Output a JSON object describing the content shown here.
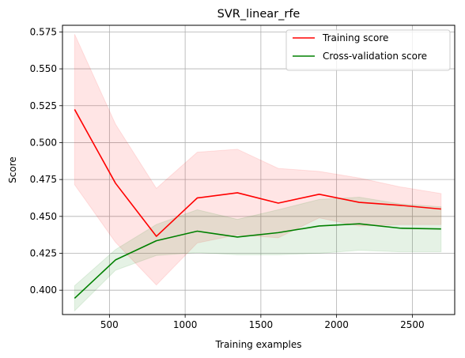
{
  "chart_data": {
    "type": "line",
    "title": "SVR_linear_rfe",
    "xlabel": "Training examples",
    "ylabel": "Score",
    "xlim": [
      190,
      2780
    ],
    "ylim": [
      0.3835,
      0.5795
    ],
    "xticks": [
      500,
      1000,
      1500,
      2000,
      2500
    ],
    "yticks": [
      0.4,
      0.425,
      0.45,
      0.475,
      0.5,
      0.525,
      0.55,
      0.575
    ],
    "ytick_labels": [
      "0.400",
      "0.425",
      "0.450",
      "0.475",
      "0.500",
      "0.525",
      "0.550",
      "0.575"
    ],
    "grid": true,
    "legend_position": "top-right",
    "x": [
      270,
      540,
      810,
      1080,
      1345,
      1615,
      1885,
      2150,
      2420,
      2690
    ],
    "series": [
      {
        "name": "Training score",
        "color": "#ff0000",
        "band_color": "#ff0000",
        "values": [
          0.5225,
          0.4725,
          0.4365,
          0.4625,
          0.466,
          0.459,
          0.465,
          0.4595,
          0.4575,
          0.455
        ],
        "upper": [
          0.5735,
          0.5125,
          0.469,
          0.4935,
          0.4955,
          0.4825,
          0.4805,
          0.476,
          0.47,
          0.4655
        ],
        "lower": [
          0.4715,
          0.4325,
          0.4035,
          0.432,
          0.4375,
          0.4355,
          0.449,
          0.4435,
          0.4445,
          0.4445
        ]
      },
      {
        "name": "Cross-validation score",
        "color": "#008000",
        "band_color": "#008000",
        "values": [
          0.3945,
          0.4205,
          0.4335,
          0.44,
          0.436,
          0.439,
          0.4435,
          0.445,
          0.442,
          0.4415
        ],
        "upper": [
          0.403,
          0.4275,
          0.4445,
          0.4545,
          0.448,
          0.4545,
          0.4615,
          0.463,
          0.4585,
          0.4565
        ],
        "lower": [
          0.386,
          0.4135,
          0.4235,
          0.4255,
          0.424,
          0.424,
          0.425,
          0.427,
          0.426,
          0.426
        ]
      }
    ]
  }
}
